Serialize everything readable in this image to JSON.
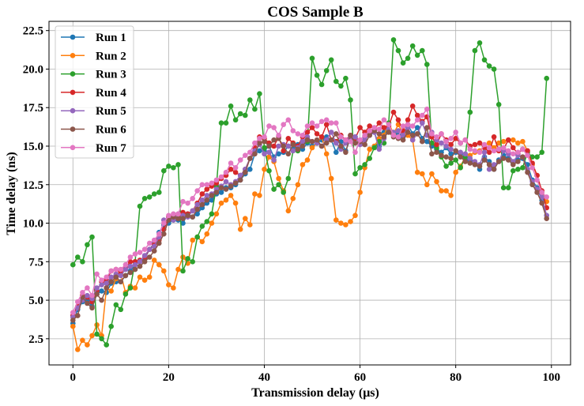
{
  "chart_data": {
    "type": "line",
    "title": "COS Sample B",
    "xlabel": "Transmission delay (μs)",
    "ylabel": "Time delay (ns)",
    "xlim": [
      -5,
      104
    ],
    "ylim": [
      0.8,
      23.1
    ],
    "xticks": [
      0,
      20,
      40,
      60,
      80,
      100
    ],
    "yticks": [
      2.5,
      5.0,
      7.5,
      10.0,
      12.5,
      15.0,
      17.5,
      20.0,
      22.5
    ],
    "ytick_labels": [
      "2.5",
      "5.0",
      "7.5",
      "10.0",
      "12.5",
      "15.0",
      "17.5",
      "20.0",
      "22.5"
    ],
    "grid": true,
    "legend": "top-left",
    "marker": "circle",
    "x": [
      0,
      1,
      2,
      3,
      4,
      5,
      6,
      7,
      8,
      9,
      10,
      11,
      12,
      13,
      14,
      15,
      16,
      17,
      18,
      19,
      20,
      21,
      22,
      23,
      24,
      25,
      26,
      27,
      28,
      29,
      30,
      31,
      32,
      33,
      34,
      35,
      36,
      37,
      38,
      39,
      40,
      41,
      42,
      43,
      44,
      45,
      46,
      47,
      48,
      49,
      50,
      51,
      52,
      53,
      54,
      55,
      56,
      57,
      58,
      59,
      60,
      61,
      62,
      63,
      64,
      65,
      66,
      67,
      68,
      69,
      70,
      71,
      72,
      73,
      74,
      75,
      76,
      77,
      78,
      79,
      80,
      81,
      82,
      83,
      84,
      85,
      86,
      87,
      88,
      89,
      90,
      91,
      92,
      93,
      94,
      95,
      96,
      97,
      98,
      99
    ],
    "series": [
      {
        "name": "Run 1",
        "color": "#1f77b4",
        "values": [
          3.5,
          4.4,
          4.9,
          5.0,
          4.6,
          5.4,
          5.6,
          5.5,
          6.1,
          6.2,
          6.2,
          6.6,
          6.9,
          7.3,
          7.5,
          7.7,
          8.3,
          8.7,
          9.4,
          9.9,
          10.0,
          10.2,
          10.2,
          10.0,
          10.6,
          10.4,
          10.6,
          11.0,
          11.3,
          11.5,
          11.9,
          12.0,
          12.3,
          12.3,
          12.5,
          12.8,
          13.2,
          13.5,
          14.5,
          14.7,
          14.7,
          15.0,
          14.3,
          14.5,
          14.6,
          15.0,
          14.8,
          15.1,
          14.8,
          15.2,
          15.0,
          15.2,
          15.4,
          15.6,
          15.4,
          14.6,
          15.3,
          14.7,
          15.5,
          15.6,
          15.2,
          15.6,
          15.7,
          15.9,
          15.0,
          15.9,
          16.0,
          15.7,
          15.8,
          15.6,
          16.4,
          15.8,
          16.2,
          15.5,
          15.3,
          15.0,
          14.8,
          14.6,
          14.9,
          14.5,
          14.6,
          14.5,
          14.2,
          14.1,
          13.9,
          13.5,
          14.3,
          14.0,
          13.5,
          14.1,
          14.4,
          14.2,
          13.9,
          14.1,
          14.2,
          13.8,
          12.8,
          12.3,
          11.5,
          10.5
        ]
      },
      {
        "name": "Run 2",
        "color": "#ff7f0e",
        "values": [
          3.3,
          1.8,
          2.4,
          2.1,
          2.7,
          3.4,
          2.7,
          5.8,
          5.6,
          6.4,
          6.7,
          5.5,
          5.9,
          5.8,
          6.5,
          6.3,
          6.5,
          7.6,
          7.3,
          6.9,
          6.0,
          5.8,
          7.0,
          7.8,
          7.4,
          8.9,
          9.1,
          8.8,
          9.3,
          10.0,
          10.6,
          11.3,
          11.5,
          11.8,
          11.3,
          9.6,
          10.3,
          9.9,
          11.9,
          11.8,
          13.5,
          14.3,
          14.0,
          12.9,
          12.1,
          10.8,
          11.6,
          12.5,
          13.8,
          14.1,
          14.9,
          15.2,
          15.6,
          14.5,
          12.9,
          10.2,
          10.0,
          9.9,
          10.1,
          10.5,
          12.0,
          13.6,
          14.8,
          15.0,
          15.5,
          15.7,
          16.5,
          15.8,
          16.4,
          15.8,
          15.7,
          15.4,
          13.3,
          13.2,
          12.5,
          13.2,
          12.7,
          12.1,
          12.1,
          11.8,
          13.3,
          13.7,
          14.3,
          14.4,
          14.6,
          14.7,
          15.0,
          15.2,
          14.9,
          15.2,
          15.3,
          15.4,
          15.4,
          15.2,
          15.3,
          14.7,
          13.8,
          13.1,
          12.0,
          11.4
        ]
      },
      {
        "name": "Run 3",
        "color": "#2ca02c",
        "values": [
          7.3,
          7.8,
          7.5,
          8.6,
          9.1,
          2.8,
          2.5,
          2.1,
          3.3,
          4.7,
          4.4,
          5.4,
          5.8,
          7.5,
          11.1,
          11.6,
          11.7,
          11.9,
          12.0,
          13.4,
          13.7,
          13.6,
          13.8,
          6.9,
          7.7,
          7.5,
          9.1,
          9.8,
          10.1,
          10.6,
          12.4,
          16.5,
          16.5,
          17.6,
          16.7,
          17.1,
          17.0,
          18.0,
          17.4,
          18.4,
          14.9,
          13.4,
          12.2,
          12.5,
          12.0,
          12.9,
          14.7,
          14.7,
          15.2,
          15.3,
          20.7,
          19.6,
          19.0,
          19.9,
          20.6,
          19.2,
          18.9,
          19.4,
          18.0,
          13.2,
          13.6,
          13.8,
          14.2,
          14.9,
          15.3,
          15.2,
          16.5,
          21.9,
          21.2,
          20.4,
          20.7,
          21.5,
          20.9,
          21.2,
          20.3,
          15.2,
          14.9,
          14.3,
          13.7,
          13.9,
          14.1,
          13.6,
          14.3,
          17.2,
          21.2,
          21.7,
          20.6,
          20.2,
          20.0,
          17.7,
          12.3,
          12.3,
          13.4,
          13.5,
          13.6,
          14.6,
          14.3,
          14.3,
          14.6,
          19.4
        ]
      },
      {
        "name": "Run 4",
        "color": "#d62728",
        "values": [
          4.0,
          4.6,
          5.3,
          5.2,
          4.9,
          5.6,
          6.2,
          6.3,
          6.9,
          7.0,
          6.8,
          7.1,
          7.5,
          7.5,
          7.6,
          7.8,
          8.3,
          8.6,
          8.9,
          9.6,
          10.4,
          10.5,
          10.3,
          10.7,
          10.6,
          10.8,
          11.3,
          11.9,
          12.2,
          12.4,
          12.6,
          12.9,
          13.1,
          13.5,
          13.3,
          13.1,
          13.5,
          14.2,
          14.9,
          15.6,
          15.5,
          15.2,
          15.0,
          15.6,
          14.7,
          15.5,
          15.2,
          15.0,
          15.6,
          15.9,
          16.2,
          15.8,
          15.6,
          16.4,
          15.4,
          15.3,
          15.7,
          15.4,
          15.7,
          15.5,
          16.2,
          15.9,
          16.3,
          16.1,
          16.5,
          16.2,
          16.3,
          17.2,
          16.7,
          16.0,
          16.7,
          17.6,
          17.0,
          16.6,
          16.9,
          15.6,
          15.1,
          15.8,
          15.4,
          15.1,
          15.5,
          15.2,
          15.4,
          15.0,
          15.1,
          15.2,
          14.9,
          14.6,
          15.6,
          14.7,
          14.8,
          15.4,
          14.9,
          14.5,
          14.8,
          14.7,
          13.9,
          13.1,
          12.1,
          11.0
        ]
      },
      {
        "name": "Run 5",
        "color": "#9467bd",
        "values": [
          3.9,
          4.5,
          5.0,
          5.3,
          5.1,
          5.8,
          6.0,
          6.1,
          6.5,
          6.7,
          6.6,
          7.0,
          7.2,
          7.3,
          7.5,
          7.9,
          8.3,
          8.5,
          9.1,
          10.2,
          10.3,
          10.2,
          10.6,
          10.5,
          10.4,
          10.8,
          11.2,
          11.5,
          11.8,
          11.9,
          12.2,
          12.4,
          12.7,
          12.5,
          12.7,
          13.1,
          13.5,
          14.2,
          14.7,
          15.1,
          14.5,
          14.6,
          14.1,
          15.0,
          15.1,
          15.0,
          14.7,
          14.9,
          15.3,
          15.6,
          15.3,
          15.2,
          15.0,
          15.4,
          15.9,
          15.2,
          14.8,
          15.2,
          15.6,
          15.6,
          15.1,
          15.4,
          15.8,
          15.9,
          14.8,
          15.5,
          16.1,
          15.9,
          16.0,
          15.7,
          16.2,
          15.4,
          15.8,
          16.5,
          15.7,
          15.9,
          15.4,
          15.2,
          15.0,
          14.8,
          14.7,
          14.6,
          14.5,
          14.2,
          14.0,
          13.8,
          14.6,
          13.5,
          13.8,
          14.0,
          14.7,
          14.5,
          14.0,
          14.4,
          14.3,
          13.5,
          12.7,
          12.2,
          11.7,
          10.5
        ]
      },
      {
        "name": "Run 6",
        "color": "#8c564b",
        "values": [
          3.7,
          4.0,
          5.2,
          4.8,
          4.5,
          5.4,
          5.0,
          5.8,
          6.2,
          6.5,
          6.2,
          6.6,
          6.8,
          7.0,
          7.2,
          7.5,
          7.8,
          8.2,
          8.7,
          9.3,
          10.2,
          10.4,
          10.3,
          10.3,
          10.5,
          10.4,
          10.9,
          11.2,
          11.5,
          11.8,
          12.0,
          12.3,
          12.2,
          12.4,
          12.6,
          12.8,
          13.3,
          14.2,
          14.5,
          15.2,
          15.3,
          15.0,
          15.4,
          15.5,
          15.0,
          14.5,
          15.1,
          14.8,
          15.0,
          15.4,
          15.3,
          15.4,
          15.0,
          15.2,
          15.4,
          15.8,
          15.0,
          14.6,
          15.7,
          15.2,
          15.3,
          15.1,
          15.7,
          16.0,
          15.8,
          15.6,
          15.9,
          15.6,
          15.5,
          15.4,
          15.9,
          15.7,
          15.8,
          15.3,
          16.2,
          14.5,
          14.6,
          14.4,
          14.3,
          14.2,
          14.7,
          14.3,
          14.0,
          13.9,
          13.8,
          13.7,
          14.1,
          13.8,
          13.5,
          14.0,
          14.2,
          14.1,
          13.8,
          14.0,
          14.3,
          13.3,
          12.5,
          12.0,
          11.3,
          10.3
        ]
      },
      {
        "name": "Run 7",
        "color": "#e377c2",
        "values": [
          4.2,
          4.9,
          5.5,
          5.8,
          5.3,
          6.7,
          6.3,
          6.5,
          6.9,
          7.0,
          7.0,
          7.3,
          7.8,
          8.0,
          8.1,
          8.3,
          8.7,
          8.9,
          9.3,
          10.0,
          10.5,
          10.6,
          10.6,
          11.4,
          11.3,
          11.6,
          12.1,
          12.5,
          12.5,
          12.6,
          12.8,
          13.0,
          13.3,
          13.9,
          13.6,
          14.1,
          14.4,
          14.6,
          15.2,
          15.5,
          15.6,
          16.3,
          16.2,
          15.7,
          16.4,
          16.7,
          16.0,
          15.8,
          15.7,
          16.3,
          16.5,
          16.3,
          16.6,
          16.7,
          16.5,
          16.5,
          15.6,
          15.4,
          15.3,
          14.6,
          15.4,
          15.7,
          16.0,
          16.2,
          16.1,
          16.7,
          16.4,
          15.7,
          15.6,
          16.3,
          16.4,
          16.3,
          16.7,
          17.0,
          17.4,
          15.8,
          15.6,
          15.8,
          15.3,
          15.5,
          15.9,
          15.2,
          15.4,
          14.8,
          14.7,
          14.6,
          15.1,
          14.9,
          14.7,
          14.8,
          14.9,
          14.7,
          14.5,
          14.6,
          14.8,
          14.4,
          13.6,
          12.8,
          12.0,
          11.7
        ]
      }
    ]
  }
}
